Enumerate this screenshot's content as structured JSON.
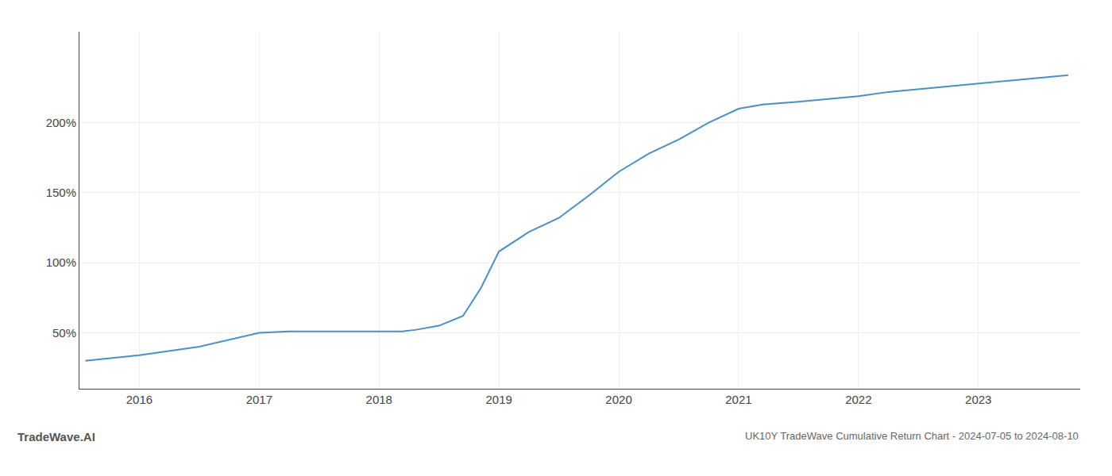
{
  "chart_data": {
    "type": "line",
    "title": "UK10Y TradeWave Cumulative Return Chart - 2024-07-05 to 2024-08-10",
    "annotations": [
      "TradeWave.AI"
    ],
    "x": [
      2015.55,
      2016.0,
      2016.5,
      2017.0,
      2017.25,
      2017.5,
      2017.75,
      2018.0,
      2018.1,
      2018.2,
      2018.3,
      2018.5,
      2018.7,
      2018.85,
      2019.0,
      2019.25,
      2019.5,
      2019.75,
      2020.0,
      2020.25,
      2020.5,
      2020.75,
      2021.0,
      2021.2,
      2021.5,
      2021.75,
      2022.0,
      2022.25,
      2022.5,
      2022.75,
      2023.0,
      2023.25,
      2023.5,
      2023.75
    ],
    "values": [
      30,
      34,
      40,
      50,
      51,
      51,
      51,
      51,
      51,
      51,
      52,
      55,
      62,
      82,
      108,
      122,
      132,
      148,
      165,
      178,
      188,
      200,
      210,
      213,
      215,
      217,
      219,
      222,
      224,
      226,
      228,
      230,
      232,
      234
    ],
    "color": "#4a90c4",
    "xlim": [
      2015.5,
      2023.85
    ],
    "ylim": [
      10,
      265
    ],
    "xticks": [
      2016,
      2017,
      2018,
      2019,
      2020,
      2021,
      2022,
      2023
    ],
    "yticks": [
      {
        "value": 50,
        "label": "50%"
      },
      {
        "value": 100,
        "label": "100%"
      },
      {
        "value": 150,
        "label": "150%"
      },
      {
        "value": 200,
        "label": "200%"
      }
    ],
    "grid": true
  }
}
